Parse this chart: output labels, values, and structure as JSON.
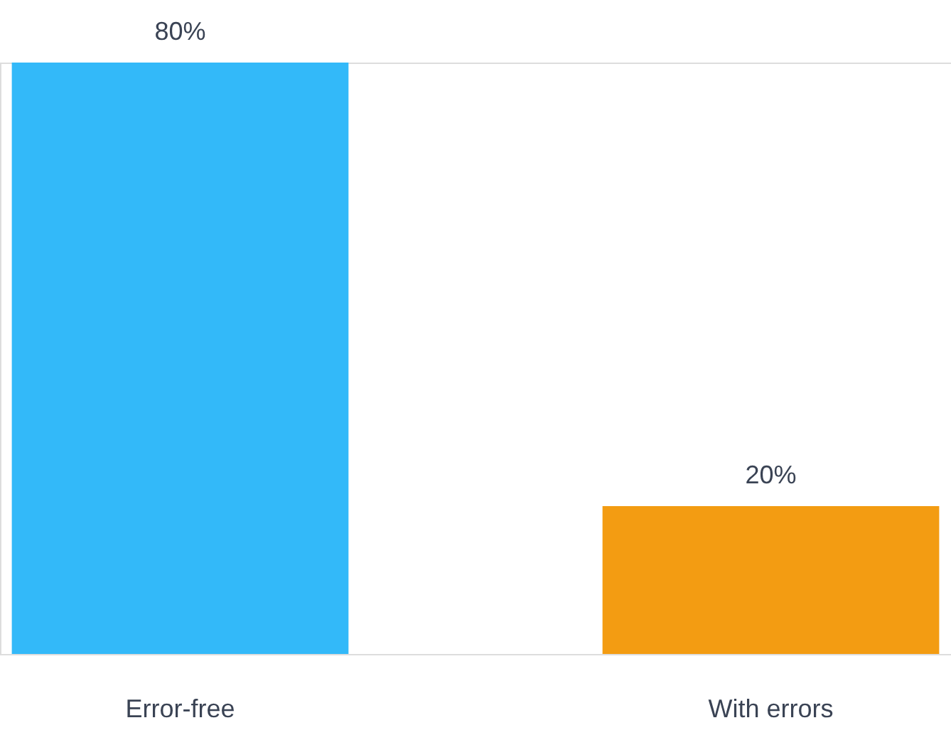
{
  "chart_data": {
    "type": "bar",
    "categories": [
      "Error-free",
      "With errors"
    ],
    "values": [
      80,
      20
    ],
    "colors": [
      "#33b9f9",
      "#f39c12"
    ],
    "value_labels": [
      "80%",
      "20%"
    ]
  }
}
